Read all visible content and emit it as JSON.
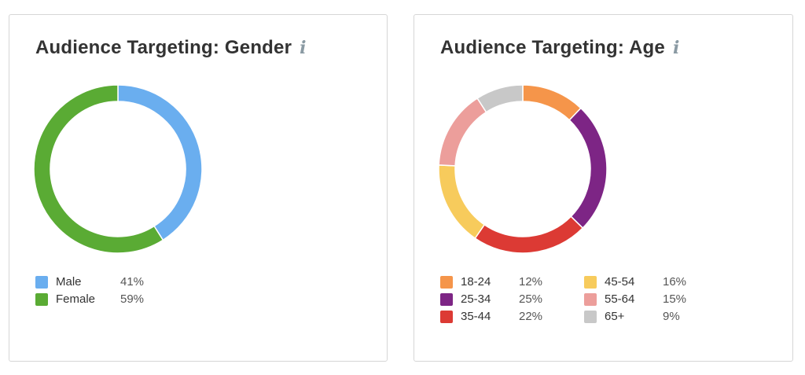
{
  "chart_data": [
    {
      "type": "pie",
      "title": "Audience Targeting: Gender",
      "categories": [
        "Male",
        "Female"
      ],
      "values": [
        41,
        59
      ],
      "value_labels": [
        "41%",
        "59%"
      ],
      "colors": [
        "#6aaeef",
        "#5aab34"
      ],
      "donut": true,
      "legend": "bottom-left"
    },
    {
      "type": "pie",
      "title": "Audience Targeting: Age",
      "categories": [
        "18-24",
        "25-34",
        "35-44",
        "45-54",
        "55-64",
        "65+"
      ],
      "values": [
        12,
        25,
        22,
        16,
        15,
        9
      ],
      "value_labels": [
        "12%",
        "25%",
        "22%",
        "16%",
        "15%",
        "9%"
      ],
      "colors": [
        "#f5954a",
        "#7d2585",
        "#dc3a34",
        "#f7cb5c",
        "#ec9e9b",
        "#c8c8c8"
      ],
      "donut": true,
      "legend": "bottom"
    }
  ],
  "icons": {
    "info": "info-icon"
  },
  "info_glyph": "i"
}
